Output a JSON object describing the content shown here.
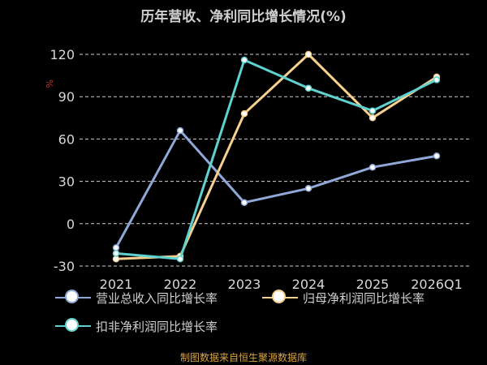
{
  "title": "历年营收、净利同比增长情况(%)",
  "source": "制图数据来自恒生聚源数据库",
  "colors": {
    "background": "#000000",
    "grid": "#cfcfcf",
    "axis_text": "#d7d7d7",
    "source": "#d9a441"
  },
  "chart_data": {
    "type": "line",
    "title": "历年营收、净利同比增长情况(%)",
    "xlabel": "",
    "ylabel": "%",
    "categories": [
      "2021",
      "2022",
      "2023",
      "2024",
      "2025",
      "2026Q1"
    ],
    "yticks": [
      -30,
      0,
      30,
      60,
      90,
      120
    ],
    "ylim": [
      -30,
      120
    ],
    "grid": "horizontal dashed",
    "legend_position": "bottom",
    "series": [
      {
        "name": "营业总收入同比增长率",
        "color": "#8fa8d8",
        "values": [
          -17,
          66,
          15,
          25,
          40,
          48
        ]
      },
      {
        "name": "归母净利润同比增长率",
        "color": "#f6d08e",
        "values": [
          -25,
          -23,
          78,
          120,
          75,
          104
        ]
      },
      {
        "name": "扣非净利润同比增长率",
        "color": "#5fd1cf",
        "values": [
          -21,
          -25,
          116,
          96,
          80,
          102
        ]
      }
    ]
  }
}
